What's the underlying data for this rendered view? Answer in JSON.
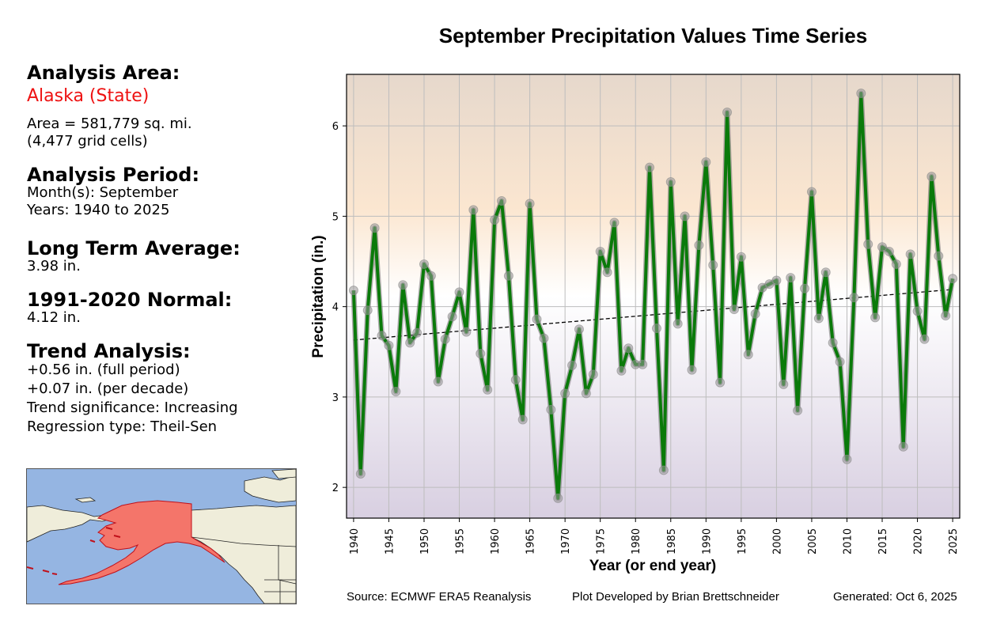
{
  "sidebar": {
    "area_heading": "Analysis Area:",
    "area_name": "Alaska (State)",
    "area_size": "Area = 581,779 sq. mi.",
    "grid_cells": "(4,477 grid cells)",
    "period_heading": "Analysis Period:",
    "months": "Month(s): September",
    "years": "Years: 1940 to 2025",
    "lta_heading": "Long Term Average:",
    "lta_value": "3.98 in.",
    "normal_heading": "1991-2020 Normal:",
    "normal_value": "4.12 in.",
    "trend_heading": "Trend Analysis:",
    "trend_full": "+0.56 in. (full period)",
    "trend_decade": "+0.07 in. (per decade)",
    "trend_significance": "Trend significance: Increasing",
    "regression_type": "Regression type: Theil-Sen"
  },
  "map": {
    "highlight_region": "Alaska",
    "highlight_color": "#f4756a",
    "ocean_color": "#95b5e2",
    "land_color": "#efedda"
  },
  "footer": {
    "source": "Source: ECMWF ERA5 Reanalysis",
    "developer": "Plot Developed by Brian Brettschneider",
    "generated": "Generated: Oct 6, 2025"
  },
  "chart_data": {
    "type": "line",
    "title": "September Precipitation Values Time Series",
    "xlabel": "Year (or end year)",
    "ylabel": "Precipitation (in.)",
    "xlim": [
      1939,
      2026
    ],
    "ylim": [
      1.66,
      6.57
    ],
    "xticks": [
      1940,
      1945,
      1950,
      1955,
      1960,
      1965,
      1970,
      1975,
      1980,
      1985,
      1990,
      1995,
      2000,
      2005,
      2010,
      2015,
      2020,
      2025
    ],
    "yticks": [
      2,
      3,
      4,
      5,
      6
    ],
    "grid": true,
    "line_color": "#0a7a0a",
    "marker_color": "#999999",
    "series": [
      {
        "name": "September Precipitation",
        "x": [
          1940,
          1941,
          1942,
          1943,
          1944,
          1945,
          1946,
          1947,
          1948,
          1949,
          1950,
          1951,
          1952,
          1953,
          1954,
          1955,
          1956,
          1957,
          1958,
          1959,
          1960,
          1961,
          1962,
          1963,
          1964,
          1965,
          1966,
          1967,
          1968,
          1969,
          1970,
          1971,
          1972,
          1973,
          1974,
          1975,
          1976,
          1977,
          1978,
          1979,
          1980,
          1981,
          1982,
          1983,
          1984,
          1985,
          1986,
          1987,
          1988,
          1989,
          1990,
          1991,
          1992,
          1993,
          1994,
          1995,
          1996,
          1997,
          1998,
          1999,
          2000,
          2001,
          2002,
          2003,
          2004,
          2005,
          2006,
          2007,
          2008,
          2009,
          2010,
          2011,
          2012,
          2013,
          2014,
          2015,
          2016,
          2017,
          2018,
          2019,
          2020,
          2021,
          2022,
          2023,
          2024,
          2025
        ],
        "values": [
          4.18,
          2.15,
          3.96,
          4.87,
          3.68,
          3.57,
          3.06,
          4.24,
          3.6,
          3.71,
          4.47,
          4.34,
          3.17,
          3.64,
          3.89,
          4.16,
          3.72,
          5.07,
          3.48,
          3.08,
          4.96,
          5.17,
          4.34,
          3.19,
          2.75,
          5.14,
          3.86,
          3.65,
          2.86,
          1.88,
          3.04,
          3.35,
          3.75,
          3.04,
          3.25,
          4.61,
          4.38,
          4.93,
          3.29,
          3.54,
          3.36,
          3.36,
          5.54,
          3.76,
          2.19,
          5.38,
          3.81,
          5.0,
          3.3,
          4.68,
          5.6,
          4.46,
          3.16,
          6.15,
          3.97,
          4.55,
          3.47,
          3.92,
          4.21,
          4.25,
          4.29,
          3.14,
          4.32,
          2.85,
          4.2,
          5.27,
          3.87,
          4.38,
          3.6,
          3.39,
          2.31,
          4.1,
          6.36,
          4.69,
          3.88,
          4.66,
          4.61,
          4.47,
          2.45,
          4.58,
          3.95,
          3.64,
          5.44,
          4.56,
          3.9,
          4.31
        ]
      }
    ],
    "trendline": {
      "type": "Theil-Sen",
      "x": [
        1940,
        2025
      ],
      "y": [
        3.63,
        4.19
      ],
      "style": "dashed",
      "color": "#000000"
    }
  }
}
